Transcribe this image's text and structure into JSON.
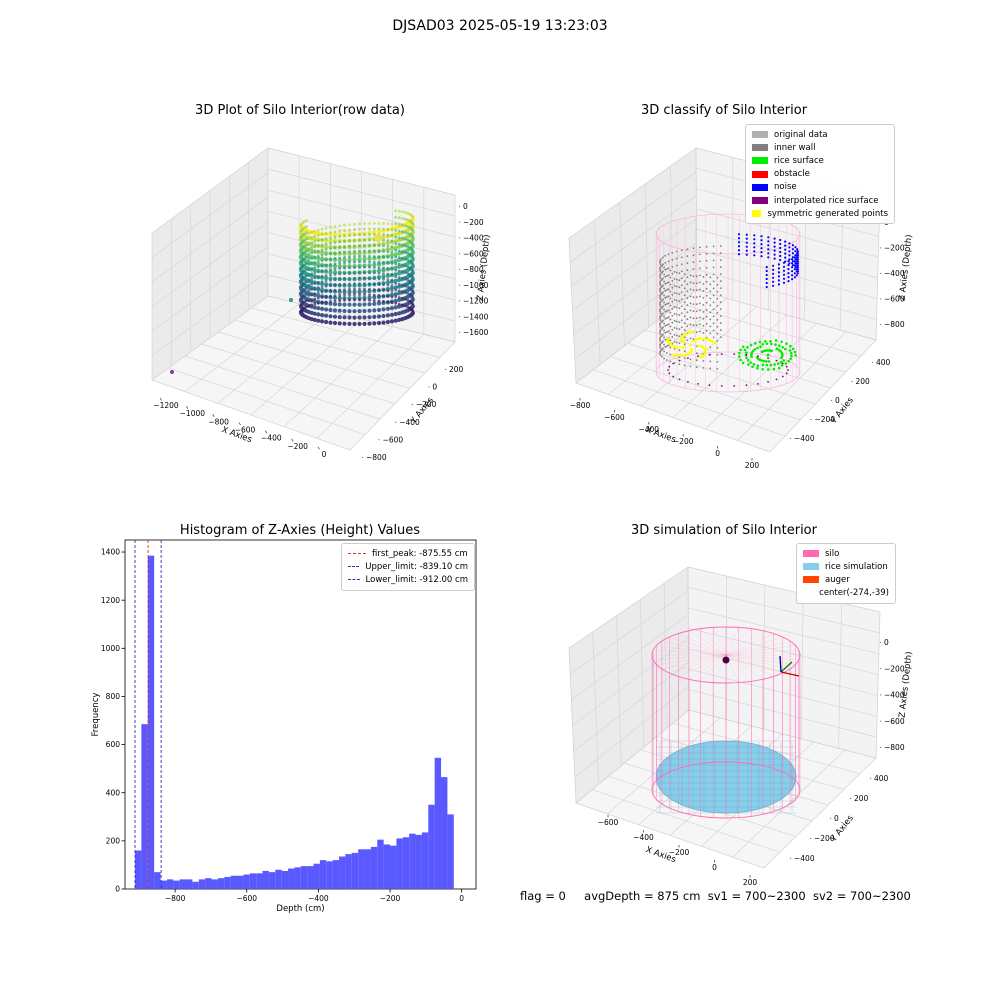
{
  "suptitle": "DJSAD03 2025-05-19 13:23:03",
  "colors": {
    "bar": "#5050ff",
    "peak_line": "#e03030",
    "limit_line": "#3030c0",
    "pane": "#f2f2f2",
    "grid": "#d6d6d6"
  },
  "panels": {
    "raw": {
      "title": "3D Plot of Silo Interior(row data)",
      "xlabel": "X Axies",
      "ylabel": "Y Axies",
      "zlabel": "Z Axies (Depth)",
      "xticks": [
        "−1200",
        "−1000",
        "−800",
        "−600",
        "−400",
        "−200",
        "0"
      ],
      "yticks": [
        "200",
        "0",
        "−200",
        "−400",
        "−600",
        "−800"
      ],
      "zticks": [
        "0",
        "−200",
        "−400",
        "−600",
        "−800",
        "−1000",
        "−1200",
        "−1400",
        "−1600"
      ]
    },
    "classify": {
      "title": "3D classify of Silo Interior",
      "xlabel": "X Axies",
      "ylabel": "Y Axies",
      "zlabel": "Z Axies (Depth)",
      "xticks": [
        "−800",
        "−600",
        "−400",
        "−200",
        "0",
        "200"
      ],
      "yticks": [
        "400",
        "200",
        "0",
        "−200",
        "−400"
      ],
      "zticks": [
        "0",
        "−200",
        "−400",
        "−600",
        "−800"
      ],
      "legend": [
        {
          "label": "original data",
          "color": "#b0b0b0"
        },
        {
          "label": "inner wall",
          "color": "#808080"
        },
        {
          "label": "rice surface",
          "color": "#00ee00"
        },
        {
          "label": "obstacle",
          "color": "#ff0000"
        },
        {
          "label": "noise",
          "color": "#0000ff"
        },
        {
          "label": "interpolated rice surface",
          "color": "#800080"
        },
        {
          "label": "symmetric generated points",
          "color": "#ffff00"
        }
      ]
    },
    "simulation": {
      "title": "3D simulation of Silo Interior",
      "xlabel": "X Axies",
      "ylabel": "Y Axies",
      "zlabel": "Z Axies (Depth)",
      "xticks": [
        "−600",
        "−400",
        "−200",
        "0",
        "200"
      ],
      "yticks": [
        "400",
        "200",
        "0",
        "−200",
        "−400"
      ],
      "zticks": [
        "0",
        "−200",
        "−400",
        "−600",
        "−800"
      ],
      "legend": [
        {
          "label": "silo",
          "color": "#ff69b4"
        },
        {
          "label": "rice simulation",
          "color": "#87ceeb"
        },
        {
          "label": "auger",
          "color": "#ff4500"
        },
        {
          "label": "center(-274,-39)",
          "color": "#ffffff"
        }
      ]
    }
  },
  "chart_data": {
    "type": "bar",
    "title": "Histogram of Z-Axies (Height) Values",
    "xlabel": "Depth (cm)",
    "ylabel": "Frequency",
    "xlim": [
      -940,
      40
    ],
    "ylim": [
      0,
      1450
    ],
    "xticks": [
      -800,
      -600,
      -400,
      -200,
      0
    ],
    "yticks": [
      0,
      200,
      400,
      600,
      800,
      1000,
      1200,
      1400
    ],
    "bin_width": 17.8,
    "bin_start": -912,
    "values": [
      160,
      685,
      1385,
      70,
      35,
      40,
      35,
      40,
      40,
      30,
      40,
      45,
      40,
      45,
      50,
      55,
      55,
      60,
      65,
      65,
      75,
      70,
      80,
      75,
      85,
      90,
      95,
      95,
      105,
      120,
      115,
      120,
      135,
      145,
      150,
      165,
      165,
      175,
      205,
      185,
      180,
      210,
      215,
      230,
      225,
      235,
      350,
      545,
      465,
      310
    ],
    "vlines": [
      {
        "label": "first_peak: -875.55 cm",
        "x": -875.55,
        "color": "#e03030"
      },
      {
        "label": "Upper_limit: -839.10 cm",
        "x": -839.1,
        "color": "#3030c0"
      },
      {
        "label": "Lower_limit: -912.00 cm",
        "x": -912.0,
        "color": "#3030c0"
      }
    ],
    "grid": false,
    "legend_position": "top-right"
  },
  "footer": {
    "flag": "flag = 0",
    "avg": "avgDepth = 875 cm",
    "sv1": "sv1 = 700~2300",
    "sv2": "sv2 = 700~2300"
  }
}
